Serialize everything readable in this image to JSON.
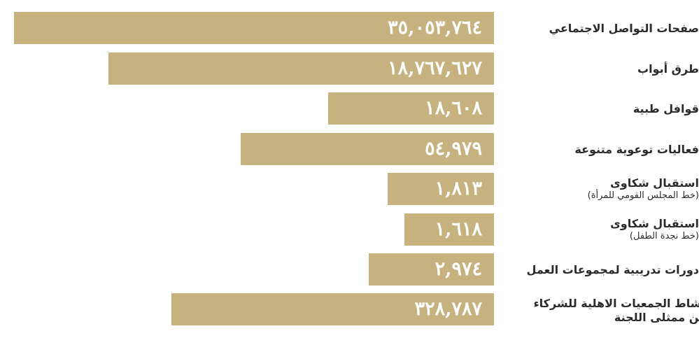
{
  "chart_data": {
    "type": "bar",
    "orientation": "horizontal",
    "colors": {
      "bar": "#c6b27e",
      "value_text": "#ffffff",
      "label_text": "#2b2b2b"
    },
    "categories": [
      {
        "label": "صفحات التواصل الاجتماعي",
        "sublabel": ""
      },
      {
        "label": "طرق أبواب",
        "sublabel": ""
      },
      {
        "label": "قوافل طبية",
        "sublabel": ""
      },
      {
        "label": "فعاليات توعوية متنوعة",
        "sublabel": ""
      },
      {
        "label": "استقبال شكاوى",
        "sublabel": "(خط المجلس القومي للمرأة)"
      },
      {
        "label": "استقبال شكاوى",
        "sublabel": "(خط نجدة الطفل)"
      },
      {
        "label": "دورات تدريبية لمجموعات العمل",
        "sublabel": ""
      },
      {
        "label": "نشاط الجمعيات الاهلية للشركاء من ممثلى اللجنة",
        "sublabel": ""
      }
    ],
    "values": [
      35053764,
      18767627,
      18608,
      54979,
      1813,
      1618,
      2974,
      328787
    ],
    "value_labels": [
      "٣٥,٠٥٣,٧٦٤",
      "١٨,٧٦٧,٦٢٧",
      "١٨,٦٠٨",
      "٥٤,٩٧٩",
      "١,٨١٣",
      "١,٦١٨",
      "٢,٩٧٤",
      "٣٢٨,٧٨٧"
    ]
  }
}
